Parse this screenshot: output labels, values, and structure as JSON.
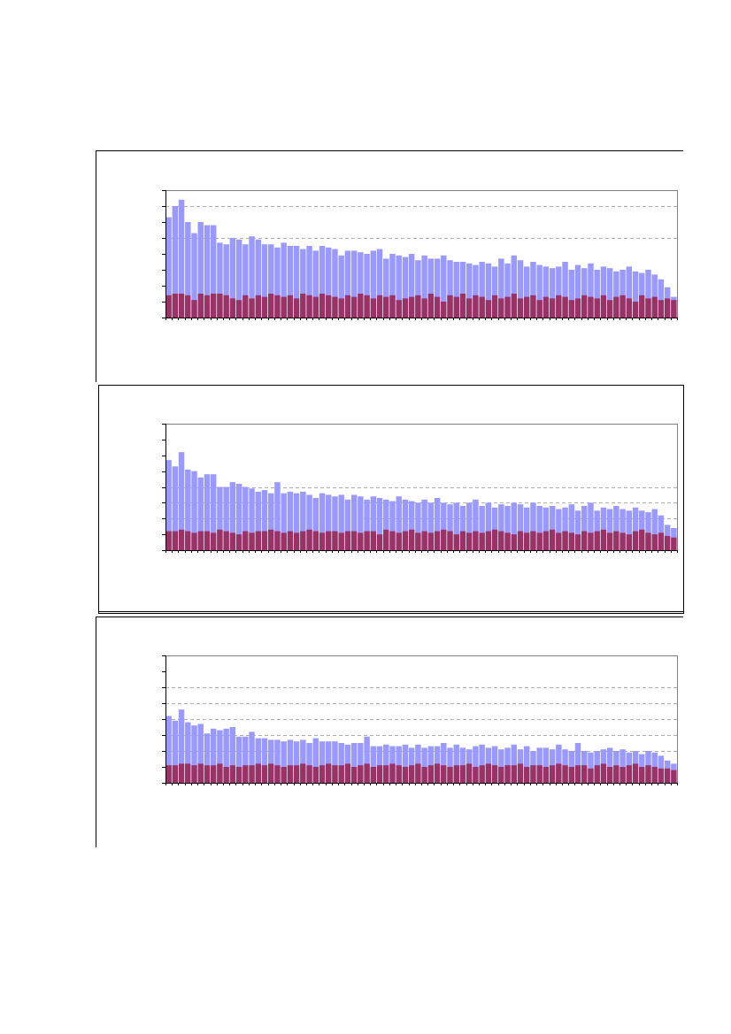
{
  "chart_data": [
    {
      "type": "bar",
      "ylim": [
        0,
        8
      ],
      "yticks": [
        0,
        1,
        2,
        3,
        4,
        5,
        6,
        7,
        8
      ],
      "grid": [
        5,
        7
      ],
      "series": [
        {
          "color": "#9999ff",
          "values": [
            6.3,
            7.0,
            7.4,
            6.0,
            5.3,
            6.0,
            5.8,
            5.8,
            4.7,
            4.6,
            5.0,
            4.9,
            4.6,
            5.1,
            4.9,
            4.6,
            4.6,
            4.4,
            4.7,
            4.5,
            4.5,
            4.3,
            4.5,
            4.2,
            4.5,
            4.4,
            4.3,
            3.9,
            4.2,
            4.2,
            4.1,
            4.0,
            4.2,
            4.3,
            3.7,
            4.0,
            3.9,
            3.8,
            4.0,
            3.6,
            3.9,
            3.7,
            3.7,
            3.9,
            3.6,
            3.5,
            3.5,
            3.4,
            3.3,
            3.5,
            3.4,
            3.2,
            3.7,
            3.4,
            3.9,
            3.6,
            3.2,
            3.5,
            3.3,
            3.2,
            3.1,
            3.2,
            3.5,
            3.0,
            3.3,
            3.1,
            3.4,
            3.0,
            3.2,
            3.1,
            2.9,
            3.0,
            3.2,
            2.9,
            2.8,
            3.0,
            2.7,
            2.4,
            1.9,
            1.3
          ]
        },
        {
          "color": "#993366",
          "values": [
            1.4,
            1.5,
            1.5,
            1.4,
            1.1,
            1.5,
            1.4,
            1.5,
            1.5,
            1.4,
            1.2,
            1.1,
            1.4,
            1.2,
            1.4,
            1.3,
            1.5,
            1.4,
            1.3,
            1.4,
            1.2,
            1.5,
            1.4,
            1.3,
            1.5,
            1.4,
            1.3,
            1.2,
            1.4,
            1.3,
            1.5,
            1.4,
            1.2,
            1.4,
            1.3,
            1.4,
            1.1,
            1.2,
            1.3,
            1.4,
            1.2,
            1.5,
            1.3,
            1.0,
            1.4,
            1.3,
            1.5,
            1.2,
            1.4,
            1.3,
            1.1,
            1.4,
            1.2,
            1.3,
            1.5,
            1.2,
            1.3,
            1.4,
            1.1,
            1.3,
            1.2,
            1.4,
            1.3,
            1.1,
            1.2,
            1.4,
            1.3,
            1.2,
            1.4,
            1.1,
            1.3,
            1.4,
            1.2,
            1.0,
            1.4,
            1.2,
            1.3,
            1.1,
            1.2,
            1.1
          ]
        }
      ]
    },
    {
      "type": "bar",
      "ylim": [
        0,
        8
      ],
      "yticks": [
        0,
        1,
        2,
        3,
        4,
        5,
        6,
        7,
        8
      ],
      "grid": [
        2,
        3,
        4
      ],
      "series": [
        {
          "color": "#9999ff",
          "values": [
            5.7,
            5.3,
            6.2,
            5.1,
            5.0,
            4.6,
            4.8,
            4.8,
            4.0,
            4.0,
            4.3,
            4.2,
            4.0,
            3.9,
            3.7,
            3.8,
            3.6,
            4.3,
            3.6,
            3.7,
            3.6,
            3.7,
            3.5,
            3.3,
            3.6,
            3.5,
            3.4,
            3.5,
            3.2,
            3.5,
            3.4,
            3.2,
            3.4,
            3.3,
            3.2,
            3.1,
            3.4,
            3.2,
            3.1,
            3.0,
            3.2,
            3.0,
            3.3,
            3.0,
            2.9,
            3.0,
            2.8,
            3.0,
            3.2,
            2.8,
            3.0,
            2.7,
            2.9,
            2.8,
            3.0,
            2.9,
            2.7,
            3.0,
            2.8,
            2.7,
            2.8,
            2.6,
            2.7,
            2.9,
            2.5,
            2.8,
            3.0,
            2.5,
            2.7,
            2.6,
            2.8,
            2.6,
            2.5,
            2.7,
            2.5,
            2.4,
            2.6,
            2.2,
            1.6,
            1.4
          ]
        },
        {
          "color": "#993366",
          "values": [
            1.2,
            1.2,
            1.3,
            1.2,
            1.1,
            1.2,
            1.2,
            1.1,
            1.3,
            1.2,
            1.1,
            1.0,
            1.2,
            1.1,
            1.2,
            1.2,
            1.3,
            1.2,
            1.1,
            1.2,
            1.1,
            1.2,
            1.3,
            1.2,
            1.1,
            1.2,
            1.2,
            1.1,
            1.2,
            1.2,
            1.1,
            1.2,
            1.2,
            1.0,
            1.3,
            1.2,
            1.1,
            1.2,
            1.3,
            1.1,
            1.2,
            1.1,
            1.2,
            1.3,
            1.2,
            1.0,
            1.2,
            1.1,
            1.2,
            1.1,
            1.2,
            1.3,
            1.2,
            1.1,
            1.0,
            1.2,
            1.1,
            1.2,
            1.1,
            1.2,
            1.3,
            1.1,
            1.2,
            1.1,
            1.0,
            1.2,
            1.1,
            1.2,
            1.3,
            1.1,
            1.2,
            1.1,
            1.0,
            1.2,
            1.3,
            1.1,
            1.0,
            1.1,
            0.9,
            0.8
          ]
        }
      ]
    },
    {
      "type": "bar",
      "ylim": [
        0,
        8
      ],
      "yticks": [
        0,
        1,
        2,
        3,
        4,
        5,
        6,
        7,
        8
      ],
      "grid": [
        2,
        3,
        4,
        5,
        6
      ],
      "series": [
        {
          "color": "#9999ff",
          "values": [
            4.2,
            3.9,
            4.6,
            3.8,
            3.6,
            3.7,
            3.1,
            3.4,
            3.3,
            3.4,
            3.5,
            2.9,
            2.9,
            3.2,
            2.8,
            2.8,
            2.7,
            2.7,
            2.6,
            2.7,
            2.6,
            2.7,
            2.5,
            2.8,
            2.6,
            2.6,
            2.6,
            2.5,
            2.4,
            2.5,
            2.5,
            2.9,
            2.3,
            2.3,
            2.4,
            2.3,
            2.3,
            2.4,
            2.2,
            2.4,
            2.2,
            2.3,
            2.3,
            2.5,
            2.2,
            2.4,
            2.2,
            2.1,
            2.3,
            2.4,
            2.2,
            2.3,
            2.1,
            2.2,
            2.4,
            2.1,
            2.3,
            2.0,
            2.2,
            2.2,
            2.1,
            2.4,
            2.1,
            2.0,
            2.5,
            2.0,
            1.9,
            2.0,
            2.1,
            2.2,
            2.0,
            2.1,
            1.9,
            2.0,
            1.8,
            2.0,
            1.9,
            1.7,
            1.4,
            1.2
          ]
        },
        {
          "color": "#993366",
          "values": [
            1.1,
            1.1,
            1.2,
            1.2,
            1.1,
            1.2,
            1.1,
            1.1,
            1.2,
            1.0,
            1.1,
            1.0,
            1.1,
            1.1,
            1.2,
            1.1,
            1.2,
            1.1,
            1.0,
            1.1,
            1.1,
            1.2,
            1.1,
            1.0,
            1.1,
            1.2,
            1.1,
            1.1,
            1.2,
            1.0,
            1.1,
            1.2,
            1.0,
            1.1,
            1.1,
            1.2,
            1.1,
            1.0,
            1.1,
            1.2,
            1.0,
            1.1,
            1.2,
            1.1,
            1.0,
            1.1,
            1.1,
            1.2,
            1.0,
            1.1,
            1.2,
            1.1,
            1.0,
            1.1,
            1.1,
            1.2,
            1.0,
            1.1,
            1.1,
            1.0,
            1.1,
            1.2,
            1.1,
            1.0,
            1.1,
            1.1,
            0.9,
            1.1,
            1.2,
            1.0,
            1.1,
            1.0,
            1.1,
            1.2,
            1.0,
            1.1,
            1.0,
            0.9,
            0.9,
            0.8
          ]
        }
      ]
    }
  ]
}
